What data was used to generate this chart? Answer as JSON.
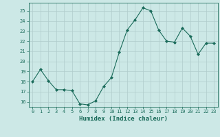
{
  "x": [
    0,
    1,
    2,
    3,
    4,
    5,
    6,
    7,
    8,
    9,
    10,
    11,
    12,
    13,
    14,
    15,
    16,
    17,
    18,
    19,
    20,
    21,
    22,
    23
  ],
  "y": [
    18.0,
    19.2,
    18.1,
    17.2,
    17.2,
    17.1,
    15.8,
    15.7,
    16.1,
    17.5,
    18.4,
    20.9,
    23.1,
    24.1,
    25.3,
    25.0,
    23.1,
    22.0,
    21.9,
    23.3,
    22.5,
    20.7,
    21.8,
    21.8
  ],
  "line_color": "#1a6b5a",
  "marker": "D",
  "marker_size": 2.0,
  "bg_color": "#cce8e6",
  "grid_color": "#b0cccc",
  "tick_color": "#1a6b5a",
  "xlabel": "Humidex (Indice chaleur)",
  "xlabel_color": "#1a6b5a",
  "ylabel_ticks": [
    16,
    17,
    18,
    19,
    20,
    21,
    22,
    23,
    24,
    25
  ],
  "ylim": [
    15.5,
    25.8
  ],
  "xlim": [
    -0.5,
    23.5
  ],
  "font_family": "monospace",
  "tick_fontsize": 5.0,
  "xlabel_fontsize": 6.5
}
